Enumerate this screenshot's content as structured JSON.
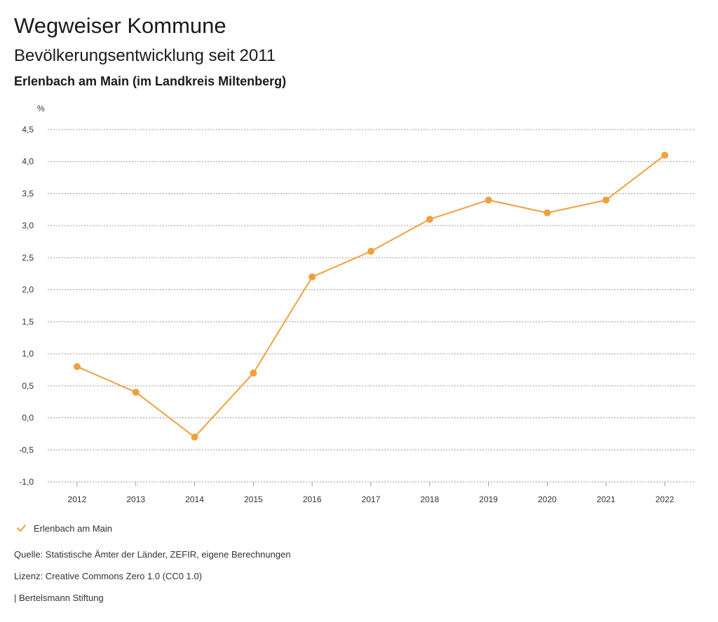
{
  "header": {
    "title": "Wegweiser Kommune",
    "subtitle": "Bevölkerungsentwicklung seit 2011",
    "region": "Erlenbach am Main (im Landkreis Miltenberg)"
  },
  "chart_data": {
    "type": "line",
    "ylabel": "%",
    "x": [
      "2012",
      "2013",
      "2014",
      "2015",
      "2016",
      "2017",
      "2018",
      "2019",
      "2020",
      "2021",
      "2022"
    ],
    "series": [
      {
        "name": "Erlenbach am Main",
        "color": "#f0a040",
        "values": [
          0.8,
          0.4,
          -0.3,
          0.7,
          2.2,
          2.6,
          3.1,
          3.4,
          3.2,
          3.4,
          4.1
        ]
      }
    ],
    "ylim": [
      -1.0,
      4.5
    ],
    "yticks": [
      -1.0,
      -0.5,
      0.0,
      0.5,
      1.0,
      1.5,
      2.0,
      2.5,
      3.0,
      3.5,
      4.0,
      4.5
    ],
    "ytick_labels": [
      "-1,0",
      "-0,5",
      "0,0",
      "0,5",
      "1,0",
      "1,5",
      "2,0",
      "2,5",
      "3,0",
      "3,5",
      "4,0",
      "4,5"
    ],
    "grid": true,
    "legend_position": "bottom-left"
  },
  "footer": {
    "source": "Quelle: Statistische Ämter der Länder, ZEFIR, eigene Berechnungen",
    "license": "Lizenz: Creative Commons Zero 1.0 (CC0 1.0)",
    "publisher": "| Bertelsmann Stiftung"
  }
}
